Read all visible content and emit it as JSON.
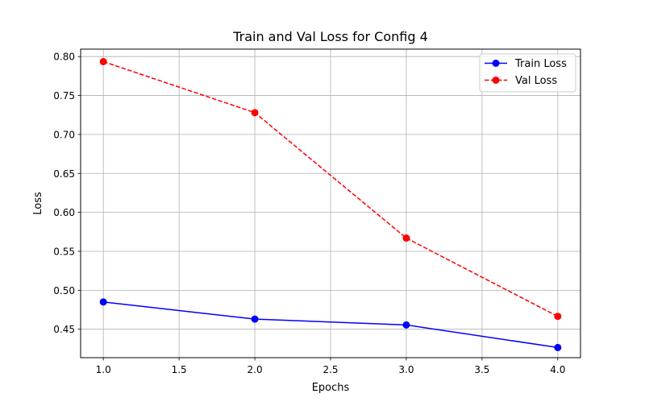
{
  "chart_data": {
    "type": "line",
    "title": "Train and Val Loss for Config 4",
    "xlabel": "Epochs",
    "ylabel": "Loss",
    "x": [
      1.0,
      2.0,
      3.0,
      4.0
    ],
    "xlim": [
      0.85,
      4.15
    ],
    "ylim": [
      0.4135,
      0.8095
    ],
    "xticks": [
      "1.0",
      "1.5",
      "2.0",
      "2.5",
      "3.0",
      "3.5",
      "4.0"
    ],
    "yticks": [
      "0.45",
      "0.50",
      "0.55",
      "0.60",
      "0.65",
      "0.70",
      "0.75",
      "0.80"
    ],
    "grid": true,
    "legend_position": "top-right",
    "series": [
      {
        "name": "Train Loss",
        "values": [
          0.485,
          0.463,
          0.4555,
          0.4265
        ],
        "color": "#0000ff",
        "line_style": "solid",
        "marker": "circle"
      },
      {
        "name": "Val Loss",
        "values": [
          0.7935,
          0.728,
          0.567,
          0.4665
        ],
        "color": "#ff0000",
        "line_style": "dashed",
        "marker": "circle"
      }
    ]
  }
}
